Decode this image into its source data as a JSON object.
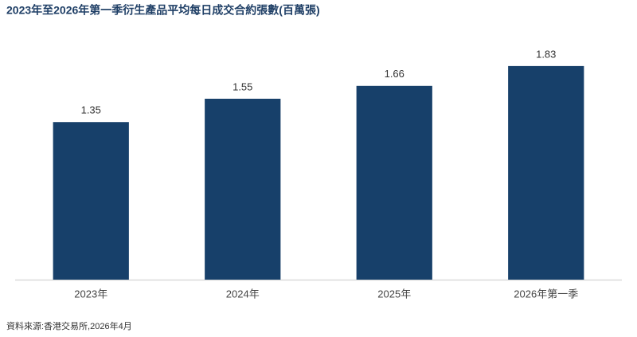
{
  "chart_data": {
    "type": "bar",
    "title": "2023年至2026年第一季衍生產品平均每日成交合約張數(百萬張)",
    "categories": [
      "2023年",
      "2024年",
      "2025年",
      "2026年第一季"
    ],
    "values": [
      1.35,
      1.55,
      1.66,
      1.83
    ],
    "color": "#17406a",
    "ylim": [
      0,
      2
    ],
    "source": "資料來源:香港交易所,2026年4月"
  }
}
